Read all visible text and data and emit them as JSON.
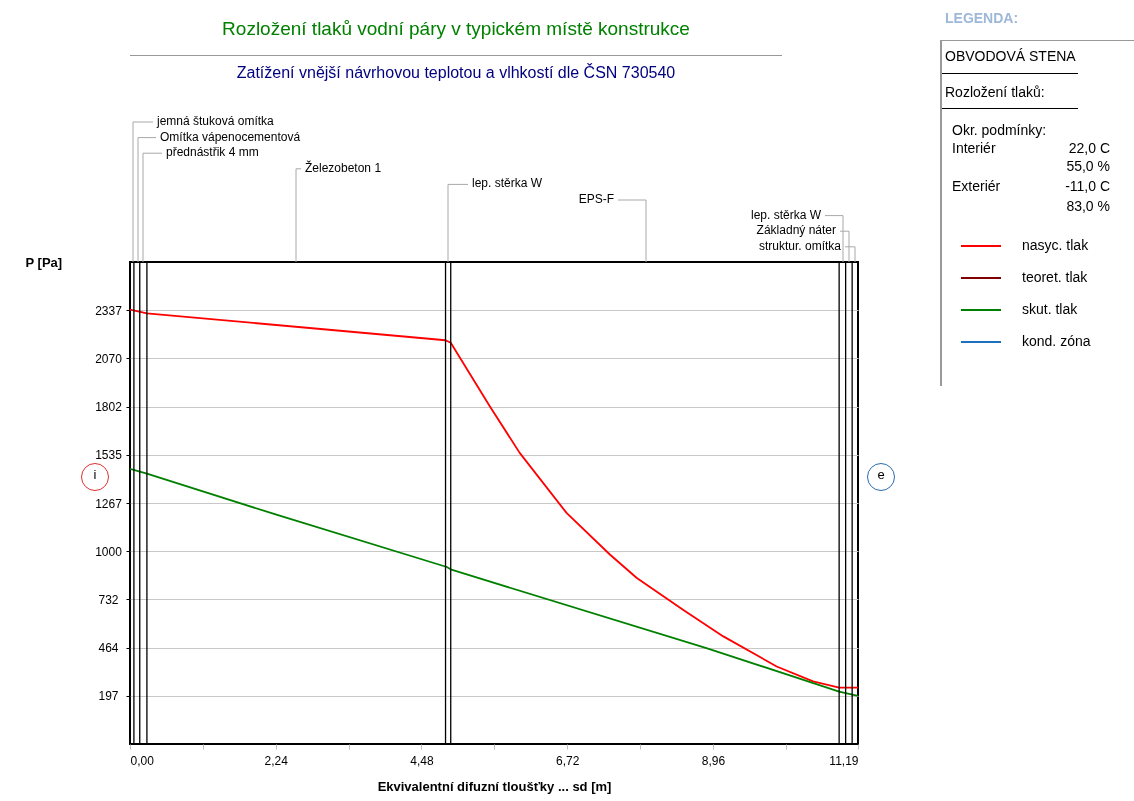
{
  "chart_data": {
    "type": "line",
    "title": "Rozložení tlaků vodní páry v typickém místě konstrukce",
    "subtitle": "Zatížení vnější návrhovou teplotou a vlhkostí dle ČSN 730540",
    "xlabel": "Ekvivalentní difuzní tloušťky ... sd [m]",
    "ylabel": "P [Pa]",
    "xlim": [
      0,
      11.19
    ],
    "xticks": [
      {
        "value": 0,
        "label": "0,00"
      },
      {
        "value": 1.12,
        "label": null
      },
      {
        "value": 2.24,
        "label": "2,24"
      },
      {
        "value": 3.36,
        "label": null
      },
      {
        "value": 4.48,
        "label": "4,48"
      },
      {
        "value": 5.6,
        "label": null
      },
      {
        "value": 6.72,
        "label": "6,72"
      },
      {
        "value": 7.84,
        "label": null
      },
      {
        "value": 8.96,
        "label": "8,96"
      },
      {
        "value": 10.08,
        "label": null
      },
      {
        "value": 11.19,
        "label": "11,19"
      }
    ],
    "ylim": [
      -70,
      2604
    ],
    "yticks": [
      197,
      464,
      732,
      1000,
      1267,
      1535,
      1802,
      2070,
      2337
    ],
    "grid": "y",
    "legend": "right",
    "line_style": "solid",
    "marker": "none",
    "series": [
      {
        "name": "nasyc. tlak",
        "color": "#ff0000",
        "x": [
          0,
          0.26,
          4.85,
          4.93,
          5.53,
          5.99,
          6.71,
          7.38,
          7.79,
          8.5,
          9.12,
          9.94,
          10.5,
          10.9,
          11.19
        ],
        "values": [
          2340,
          2319,
          2170,
          2156,
          1804,
          1545,
          1212,
          980,
          851,
          675,
          527,
          360,
          277,
          243,
          243
        ]
      },
      {
        "name": "teoret. tlak",
        "color": "#800000"
      },
      {
        "name": "skut. tlak",
        "color": "#008000",
        "x": [
          0,
          0.26,
          2.25,
          4.87,
          4.94,
          8.86,
          10.9,
          11.19
        ],
        "values": [
          1456,
          1430,
          1202,
          912,
          897,
          462,
          221,
          197
        ]
      },
      {
        "name": "kond. zóna",
        "color": "#1f6fbf"
      }
    ],
    "ref_lines": [
      {
        "axis": "x",
        "value": 0.06,
        "color": "#000000"
      },
      {
        "axis": "x",
        "value": 0.15,
        "color": "#000000"
      },
      {
        "axis": "x",
        "value": 0.26,
        "color": "#000000"
      },
      {
        "axis": "x",
        "value": 4.85,
        "color": "#000000"
      },
      {
        "axis": "x",
        "value": 4.93,
        "color": "#000000"
      },
      {
        "axis": "x",
        "value": 10.9,
        "color": "#000000"
      },
      {
        "axis": "x",
        "value": 11.0,
        "color": "#000000"
      },
      {
        "axis": "x",
        "value": 11.1,
        "color": "#000000"
      }
    ],
    "annotations": [
      "jemná štuková omítka",
      "Omítka vápenocementová",
      "přednástřik 4 mm",
      "Železobeton 1",
      "lep. stěrka W",
      "EPS-F",
      "lep. stěrka W",
      "Základný náter",
      "struktur. omítka",
      "LEGENDA:",
      "OBVODOVÁ STENA",
      "Rozložení tlaků:",
      "Okr. podmínky:",
      "Interiér",
      "22,0 C",
      "55,0 %",
      "Exteriér",
      "-11,0 C",
      "83,0 %",
      "i",
      "e"
    ]
  }
}
